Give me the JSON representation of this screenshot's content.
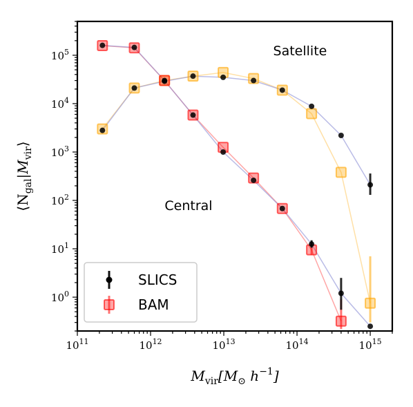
{
  "chart_data": {
    "type": "scatter",
    "xlabel": "M_vir[M_⊙ h^−1]",
    "ylabel": "⟨N_gal|M_vir⟩",
    "xscale": "log",
    "yscale": "log",
    "xlim": [
      100000000000.0,
      2000000000000000.0
    ],
    "ylim": [
      0.2,
      500000.0
    ],
    "x_ticks": [
      {
        "value": 100000000000.0,
        "base": "10",
        "exp": "11"
      },
      {
        "value": 1000000000000.0,
        "base": "10",
        "exp": "12"
      },
      {
        "value": 10000000000000.0,
        "base": "10",
        "exp": "13"
      },
      {
        "value": 100000000000000.0,
        "base": "10",
        "exp": "14"
      },
      {
        "value": 1000000000000000.0,
        "base": "10",
        "exp": "15"
      }
    ],
    "y_ticks": [
      {
        "value": 1,
        "base": "10",
        "exp": "0"
      },
      {
        "value": 10,
        "base": "10",
        "exp": "1"
      },
      {
        "value": 100,
        "base": "10",
        "exp": "2"
      },
      {
        "value": 1000,
        "base": "10",
        "exp": "3"
      },
      {
        "value": 10000,
        "base": "10",
        "exp": "4"
      },
      {
        "value": 100000,
        "base": "10",
        "exp": "5"
      }
    ],
    "annotations": [
      {
        "text": "Satellite",
        "x": 110000000000000.0,
        "y": 100000.0
      },
      {
        "text": "Central",
        "x": 3300000000000.0,
        "y": 63
      }
    ],
    "x": [
      220000000000.0,
      600000000000.0,
      1550000000000.0,
      3800000000000.0,
      9800000000000.0,
      25500000000000.0,
      63000000000000.0,
      158000000000000.0,
      400000000000000.0,
      1000000000000000.0
    ],
    "legend_position": "lower-left",
    "legend": [
      {
        "label": "SLICS",
        "marker": "circle",
        "color": "#000000"
      },
      {
        "label": "BAM",
        "marker": "square",
        "color": "#ff0000"
      }
    ],
    "series": [
      {
        "name": "SLICS",
        "component": "Satellite",
        "color": "#000000",
        "line_color": "#8c8fd6",
        "values": [
          2800,
          21000,
          29000,
          37000,
          35000,
          30000,
          19000,
          8800,
          2200,
          210
        ],
        "err_low": [
          null,
          null,
          null,
          null,
          null,
          null,
          null,
          null,
          null,
          130
        ],
        "err_high": [
          null,
          null,
          null,
          null,
          null,
          null,
          null,
          null,
          null,
          360
        ]
      },
      {
        "name": "SLICS",
        "component": "Central",
        "color": "#000000",
        "line_color": "#8c8fd6",
        "values": [
          160000,
          145000,
          30000,
          5800,
          1000,
          260,
          68,
          12.5,
          1.2,
          0.25
        ],
        "err_low": [
          null,
          null,
          null,
          null,
          null,
          null,
          null,
          10.5,
          0.55,
          null
        ],
        "err_high": [
          null,
          null,
          null,
          null,
          null,
          null,
          null,
          15,
          2.5,
          null
        ]
      },
      {
        "name": "BAM",
        "component": "Satellite",
        "color": "#ffa500",
        "values": [
          3000,
          21000,
          30000,
          37000,
          44000,
          33000,
          19000,
          6200,
          380,
          0.75
        ],
        "err_low": [
          null,
          null,
          null,
          null,
          null,
          null,
          null,
          null,
          null,
          0.3
        ],
        "err_high": [
          null,
          null,
          null,
          null,
          null,
          null,
          null,
          null,
          null,
          7
        ]
      },
      {
        "name": "BAM",
        "component": "Central",
        "color": "#ff0000",
        "values": [
          158000,
          142000,
          30000,
          5800,
          1250,
          290,
          68,
          9.5,
          0.32,
          null
        ],
        "err_low": [
          null,
          null,
          null,
          null,
          null,
          null,
          null,
          7.5,
          0.22,
          null
        ],
        "err_high": [
          null,
          null,
          null,
          null,
          null,
          null,
          null,
          13,
          0.9,
          null
        ]
      }
    ]
  }
}
